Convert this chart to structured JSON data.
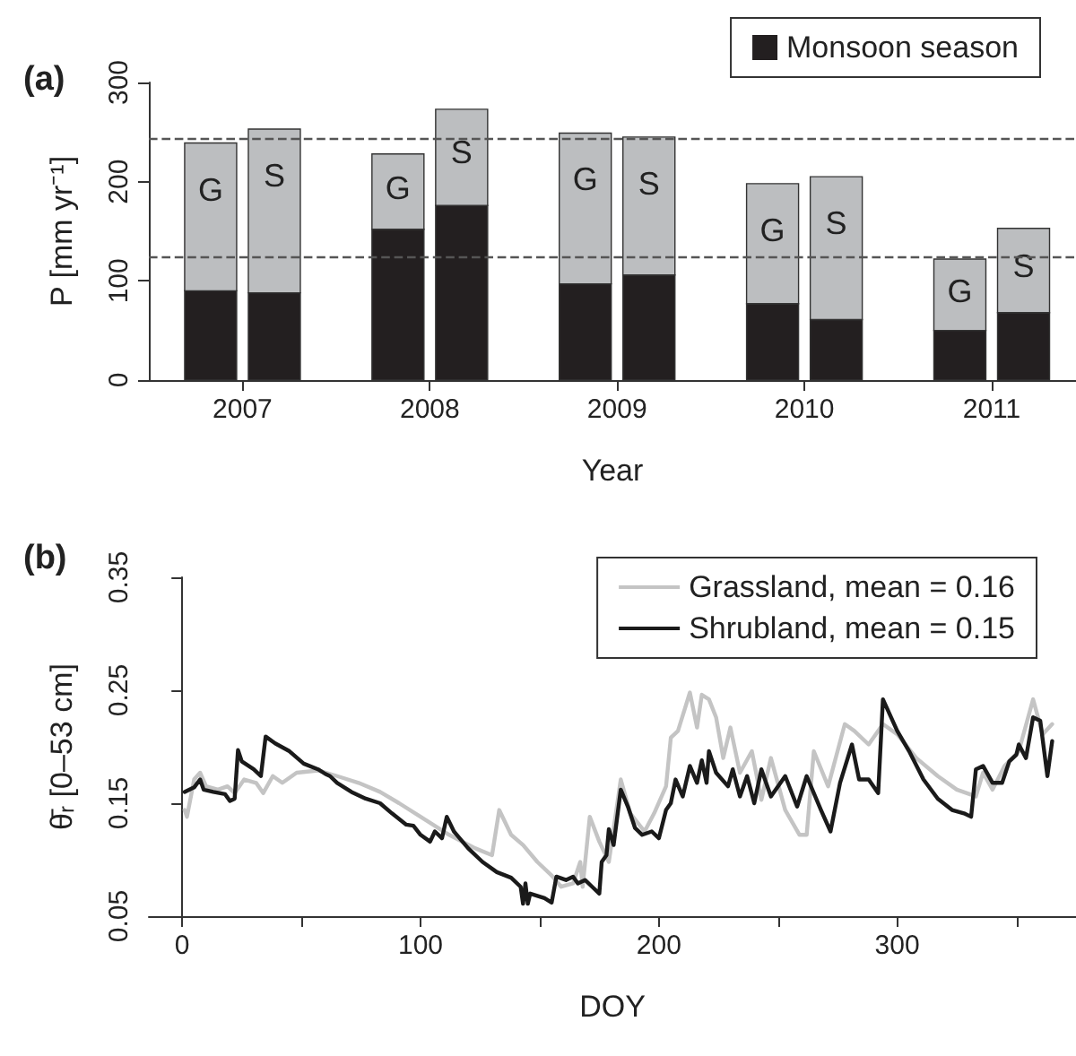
{
  "chart_data": [
    {
      "type": "bar",
      "title": "(a)",
      "xlabel": "Year",
      "ylabel": "P [mm yr⁻¹]",
      "stacked": true,
      "x": [
        2006.83,
        2007.17,
        2007.83,
        2008.17,
        2008.83,
        2009.17,
        2009.83,
        2010.17,
        2010.83,
        2011.17
      ],
      "series": [
        {
          "name": "Monsoon season",
          "color": "#231f20",
          "values": [
            90,
            88,
            152,
            176,
            97,
            106,
            77,
            61,
            50,
            68
          ]
        },
        {
          "color": "#bcbec0",
          "values": [
            149,
            165,
            76,
            97,
            152,
            139,
            121,
            144,
            72,
            85
          ],
          "value_labels": [
            "G",
            "S",
            "G",
            "S",
            "G",
            "S",
            "G",
            "S",
            "G",
            "S"
          ]
        }
      ],
      "xlim": [
        2006.5,
        2011.45
      ],
      "xticks": [
        2007,
        2008,
        2009,
        2010,
        2011
      ],
      "ylim": [
        0,
        300
      ],
      "yticks": [
        0,
        100,
        200,
        300
      ],
      "ref_lines": [
        {
          "axis": "y",
          "value": 243,
          "color": "#555555",
          "line_style": "dashed"
        },
        {
          "axis": "y",
          "value": 125,
          "color": "#555555",
          "line_style": "dashed"
        }
      ],
      "legend": "top right"
    },
    {
      "type": "line",
      "title": "(b)",
      "xlabel": "DOY",
      "ylabel": "θ̄ᵣ [0–53 cm]",
      "series": [
        {
          "name": "Grassland, mean = 0.16",
          "color": "#c4c4c4",
          "x": [
            1,
            2,
            5,
            7.5,
            10,
            15,
            19,
            22,
            26,
            31,
            34,
            38,
            42,
            48,
            57,
            65,
            74,
            83,
            91,
            100,
            112,
            123,
            130,
            133,
            138,
            143,
            149,
            155,
            159,
            164,
            167,
            168,
            171,
            175,
            179,
            184,
            188,
            194,
            198,
            203,
            205,
            208,
            213,
            216,
            218,
            221,
            224,
            227,
            230,
            234,
            239,
            243,
            247,
            253,
            259,
            262,
            265,
            271,
            278,
            282,
            288,
            294,
            300,
            308,
            317,
            325,
            333,
            336,
            340,
            345,
            351,
            357,
            361,
            365
          ],
          "values": [
            0.144,
            0.138,
            0.171,
            0.177,
            0.165,
            0.162,
            0.165,
            0.159,
            0.171,
            0.168,
            0.159,
            0.174,
            0.168,
            0.177,
            0.179,
            0.174,
            0.168,
            0.16,
            0.15,
            0.138,
            0.122,
            0.11,
            0.104,
            0.144,
            0.122,
            0.113,
            0.098,
            0.086,
            0.076,
            0.079,
            0.098,
            0.076,
            0.138,
            0.116,
            0.098,
            0.171,
            0.141,
            0.125,
            0.141,
            0.165,
            0.208,
            0.214,
            0.248,
            0.217,
            0.246,
            0.242,
            0.226,
            0.19,
            0.217,
            0.177,
            0.196,
            0.153,
            0.19,
            0.144,
            0.122,
            0.122,
            0.196,
            0.165,
            0.22,
            0.214,
            0.202,
            0.22,
            0.211,
            0.19,
            0.174,
            0.162,
            0.156,
            0.177,
            0.162,
            0.183,
            0.196,
            0.242,
            0.211,
            0.22
          ]
        },
        {
          "name": "Shrubland, mean = 0.15",
          "color": "#1a1a1a",
          "x": [
            1,
            5,
            7.5,
            9,
            13,
            18,
            20,
            22,
            23.4,
            25,
            30,
            33,
            35,
            39,
            45,
            51,
            57,
            60,
            62,
            65,
            71,
            77,
            83,
            88,
            94,
            97,
            100,
            104,
            106,
            109,
            111,
            114,
            120,
            126,
            132,
            138,
            142,
            143,
            144,
            145,
            146,
            152,
            155,
            157,
            161,
            164,
            166,
            169,
            172,
            175,
            176,
            178,
            179,
            181,
            184,
            187,
            190,
            193,
            197,
            200,
            203,
            205,
            207,
            210,
            213,
            216,
            218,
            220,
            221,
            224,
            229,
            231,
            234,
            237,
            240,
            243,
            247,
            253,
            258,
            262,
            268,
            272,
            276,
            281,
            284,
            288,
            292,
            294,
            300,
            305,
            311,
            317,
            323,
            328,
            331,
            333,
            336,
            340,
            344,
            347,
            350,
            351,
            354,
            357,
            360,
            363,
            365
          ],
          "values": [
            0.16,
            0.164,
            0.171,
            0.162,
            0.16,
            0.158,
            0.152,
            0.154,
            0.197,
            0.187,
            0.18,
            0.174,
            0.209,
            0.203,
            0.196,
            0.185,
            0.18,
            0.176,
            0.174,
            0.168,
            0.16,
            0.154,
            0.15,
            0.141,
            0.131,
            0.13,
            0.122,
            0.116,
            0.125,
            0.119,
            0.138,
            0.125,
            0.11,
            0.098,
            0.089,
            0.084,
            0.076,
            0.061,
            0.079,
            0.061,
            0.07,
            0.066,
            0.062,
            0.085,
            0.082,
            0.085,
            0.079,
            0.082,
            0.076,
            0.07,
            0.098,
            0.104,
            0.127,
            0.113,
            0.162,
            0.147,
            0.128,
            0.122,
            0.125,
            0.119,
            0.144,
            0.15,
            0.171,
            0.156,
            0.183,
            0.168,
            0.188,
            0.168,
            0.196,
            0.177,
            0.165,
            0.18,
            0.156,
            0.174,
            0.15,
            0.18,
            0.156,
            0.174,
            0.147,
            0.174,
            0.144,
            0.125,
            0.168,
            0.202,
            0.171,
            0.171,
            0.159,
            0.242,
            0.214,
            0.196,
            0.171,
            0.154,
            0.144,
            0.141,
            0.138,
            0.18,
            0.183,
            0.168,
            0.168,
            0.187,
            0.193,
            0.202,
            0.19,
            0.226,
            0.223,
            0.174,
            0.205
          ]
        }
      ],
      "xlim": [
        -14,
        375
      ],
      "xticks": [
        0,
        {
          "value": 50,
          "label": null
        },
        100,
        {
          "value": 150,
          "label": null
        },
        200,
        {
          "value": 250,
          "label": null
        },
        300,
        {
          "value": 350,
          "label": null
        }
      ],
      "ylim": [
        0.05,
        0.35
      ],
      "yticks": [
        0.05,
        0.15,
        0.25,
        0.35
      ],
      "legend": "top right"
    }
  ]
}
